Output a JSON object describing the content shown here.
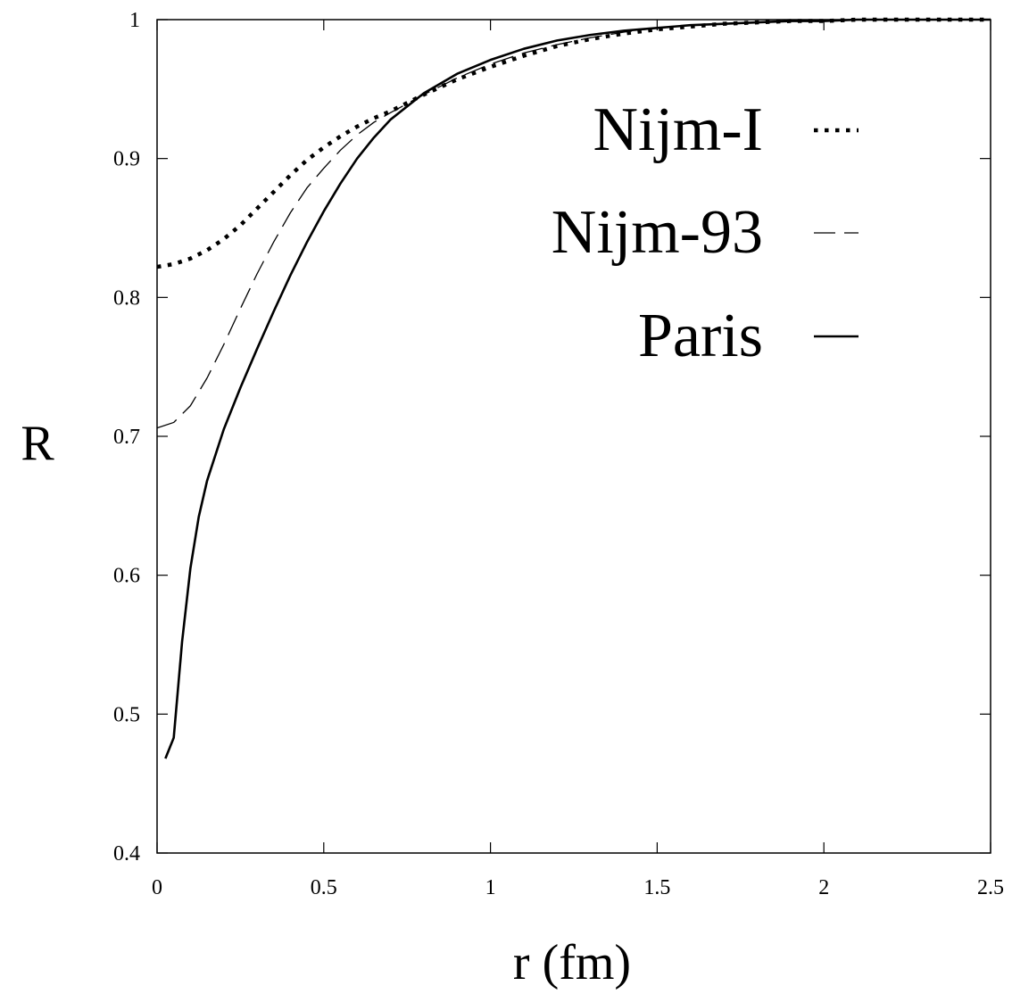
{
  "chart_data": {
    "type": "line",
    "title": "",
    "xlabel": "r (fm)",
    "ylabel": "R",
    "xlim": [
      0,
      2.5
    ],
    "ylim": [
      0.4,
      1.0
    ],
    "grid": false,
    "legend_position": "top-right",
    "xticks": [
      "0",
      "0.5",
      "1",
      "1.5",
      "2",
      "2.5"
    ],
    "yticks": [
      "0.4",
      "0.5",
      "0.6",
      "0.7",
      "0.8",
      "0.9",
      "1"
    ],
    "series": [
      {
        "name": "Nijm-I",
        "style": "dotted",
        "x": [
          0,
          0.05,
          0.1,
          0.15,
          0.2,
          0.25,
          0.3,
          0.35,
          0.4,
          0.45,
          0.5,
          0.55,
          0.6,
          0.65,
          0.7,
          0.8,
          0.9,
          1.0,
          1.1,
          1.2,
          1.3,
          1.4,
          1.5,
          1.6,
          1.7,
          1.8,
          1.9,
          2.0,
          2.1,
          2.2,
          2.3,
          2.4,
          2.5
        ],
        "y": [
          0.822,
          0.824,
          0.828,
          0.834,
          0.842,
          0.852,
          0.864,
          0.876,
          0.888,
          0.899,
          0.908,
          0.916,
          0.923,
          0.929,
          0.934,
          0.946,
          0.957,
          0.966,
          0.974,
          0.981,
          0.986,
          0.99,
          0.993,
          0.995,
          0.997,
          0.998,
          0.999,
          0.999,
          1.0,
          1.0,
          1.0,
          1.0,
          1.0
        ]
      },
      {
        "name": "Nijm-93",
        "style": "dashed",
        "x": [
          0,
          0.05,
          0.1,
          0.15,
          0.2,
          0.25,
          0.3,
          0.35,
          0.4,
          0.45,
          0.5,
          0.55,
          0.6,
          0.65,
          0.7,
          0.8,
          0.9,
          1.0,
          1.1,
          1.2,
          1.3,
          1.4,
          1.5,
          1.6,
          1.7,
          1.8,
          1.9,
          2.0,
          2.1,
          2.2,
          2.3,
          2.4,
          2.5
        ],
        "y": [
          0.706,
          0.71,
          0.722,
          0.742,
          0.766,
          0.792,
          0.817,
          0.84,
          0.861,
          0.879,
          0.893,
          0.906,
          0.917,
          0.926,
          0.933,
          0.946,
          0.958,
          0.968,
          0.976,
          0.982,
          0.987,
          0.991,
          0.994,
          0.996,
          0.997,
          0.998,
          0.999,
          0.999,
          1.0,
          1.0,
          1.0,
          1.0,
          1.0
        ]
      },
      {
        "name": "Paris",
        "style": "solid",
        "x": [
          0.025,
          0.05,
          0.075,
          0.1,
          0.125,
          0.15,
          0.2,
          0.25,
          0.3,
          0.35,
          0.4,
          0.45,
          0.5,
          0.55,
          0.6,
          0.65,
          0.7,
          0.8,
          0.9,
          1.0,
          1.1,
          1.2,
          1.3,
          1.4,
          1.5,
          1.6,
          1.7,
          1.8,
          1.9,
          2.0,
          2.1,
          2.2,
          2.3,
          2.4,
          2.5
        ],
        "y": [
          0.468,
          0.483,
          0.552,
          0.605,
          0.642,
          0.668,
          0.705,
          0.735,
          0.763,
          0.79,
          0.816,
          0.84,
          0.862,
          0.882,
          0.9,
          0.915,
          0.928,
          0.947,
          0.961,
          0.971,
          0.979,
          0.985,
          0.989,
          0.992,
          0.994,
          0.996,
          0.997,
          0.998,
          0.999,
          0.999,
          1.0,
          1.0,
          1.0,
          1.0,
          1.0
        ]
      }
    ]
  }
}
